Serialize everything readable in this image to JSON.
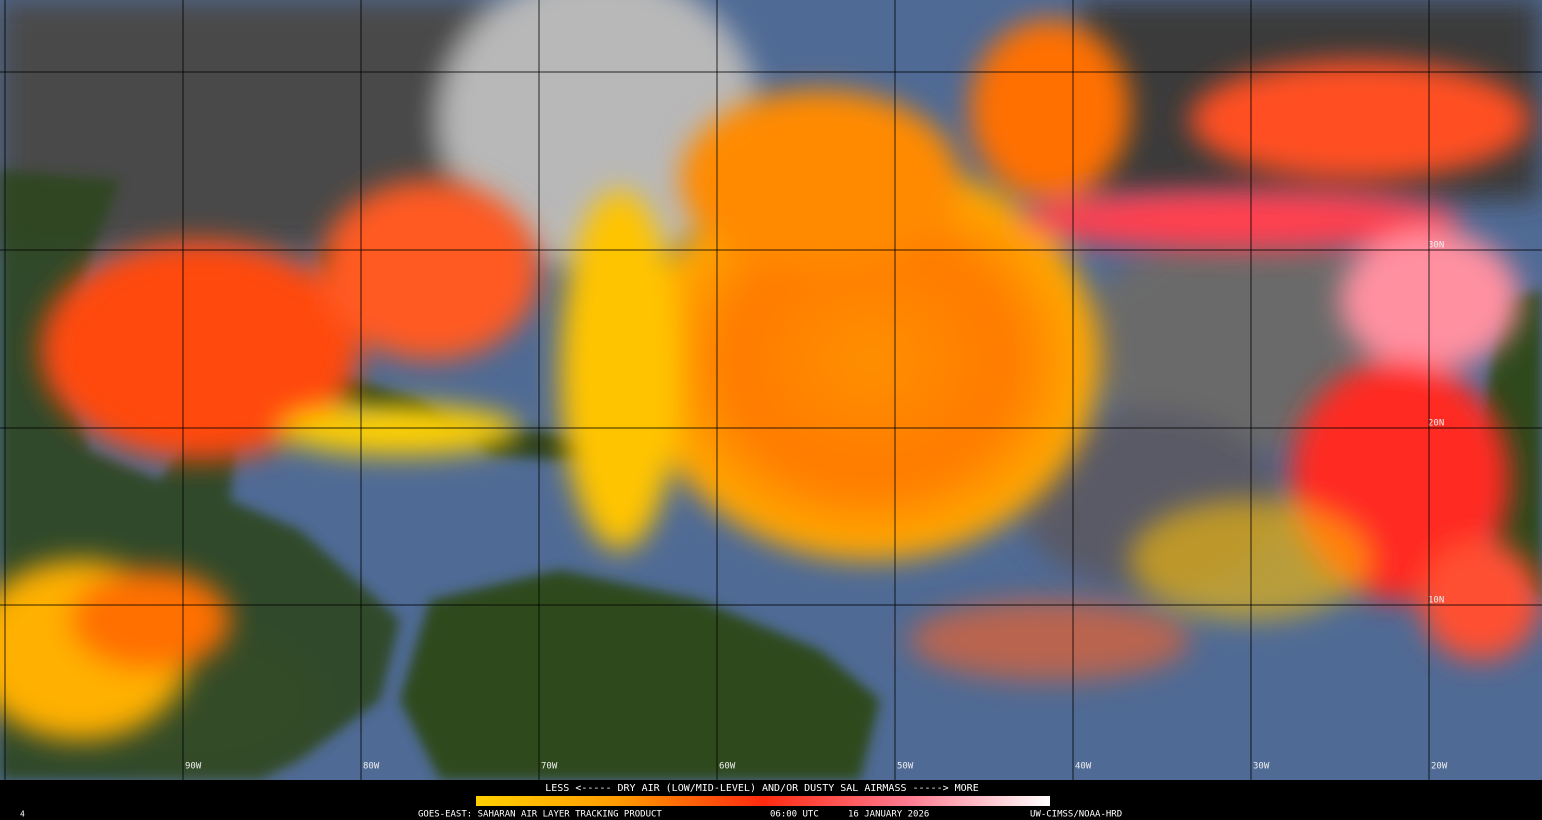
{
  "legend": {
    "caption": "LESS <----- DRY AIR (LOW/MID-LEVEL) AND/OR DUSTY SAL AIRMASS -----> MORE"
  },
  "footer": {
    "frame": "4",
    "product": "GOES-EAST: SAHARAN AIR LAYER TRACKING PRODUCT",
    "time": "06:00 UTC",
    "date": "16 JANUARY 2026",
    "credit": "UW-CIMSS/NOAA-HRD"
  },
  "grid_labels": {
    "latitudes": [
      "30N",
      "20N",
      "10N"
    ],
    "longitudes": [
      "90W",
      "80W",
      "70W",
      "60W",
      "50W",
      "40W",
      "30W",
      "20W"
    ]
  }
}
